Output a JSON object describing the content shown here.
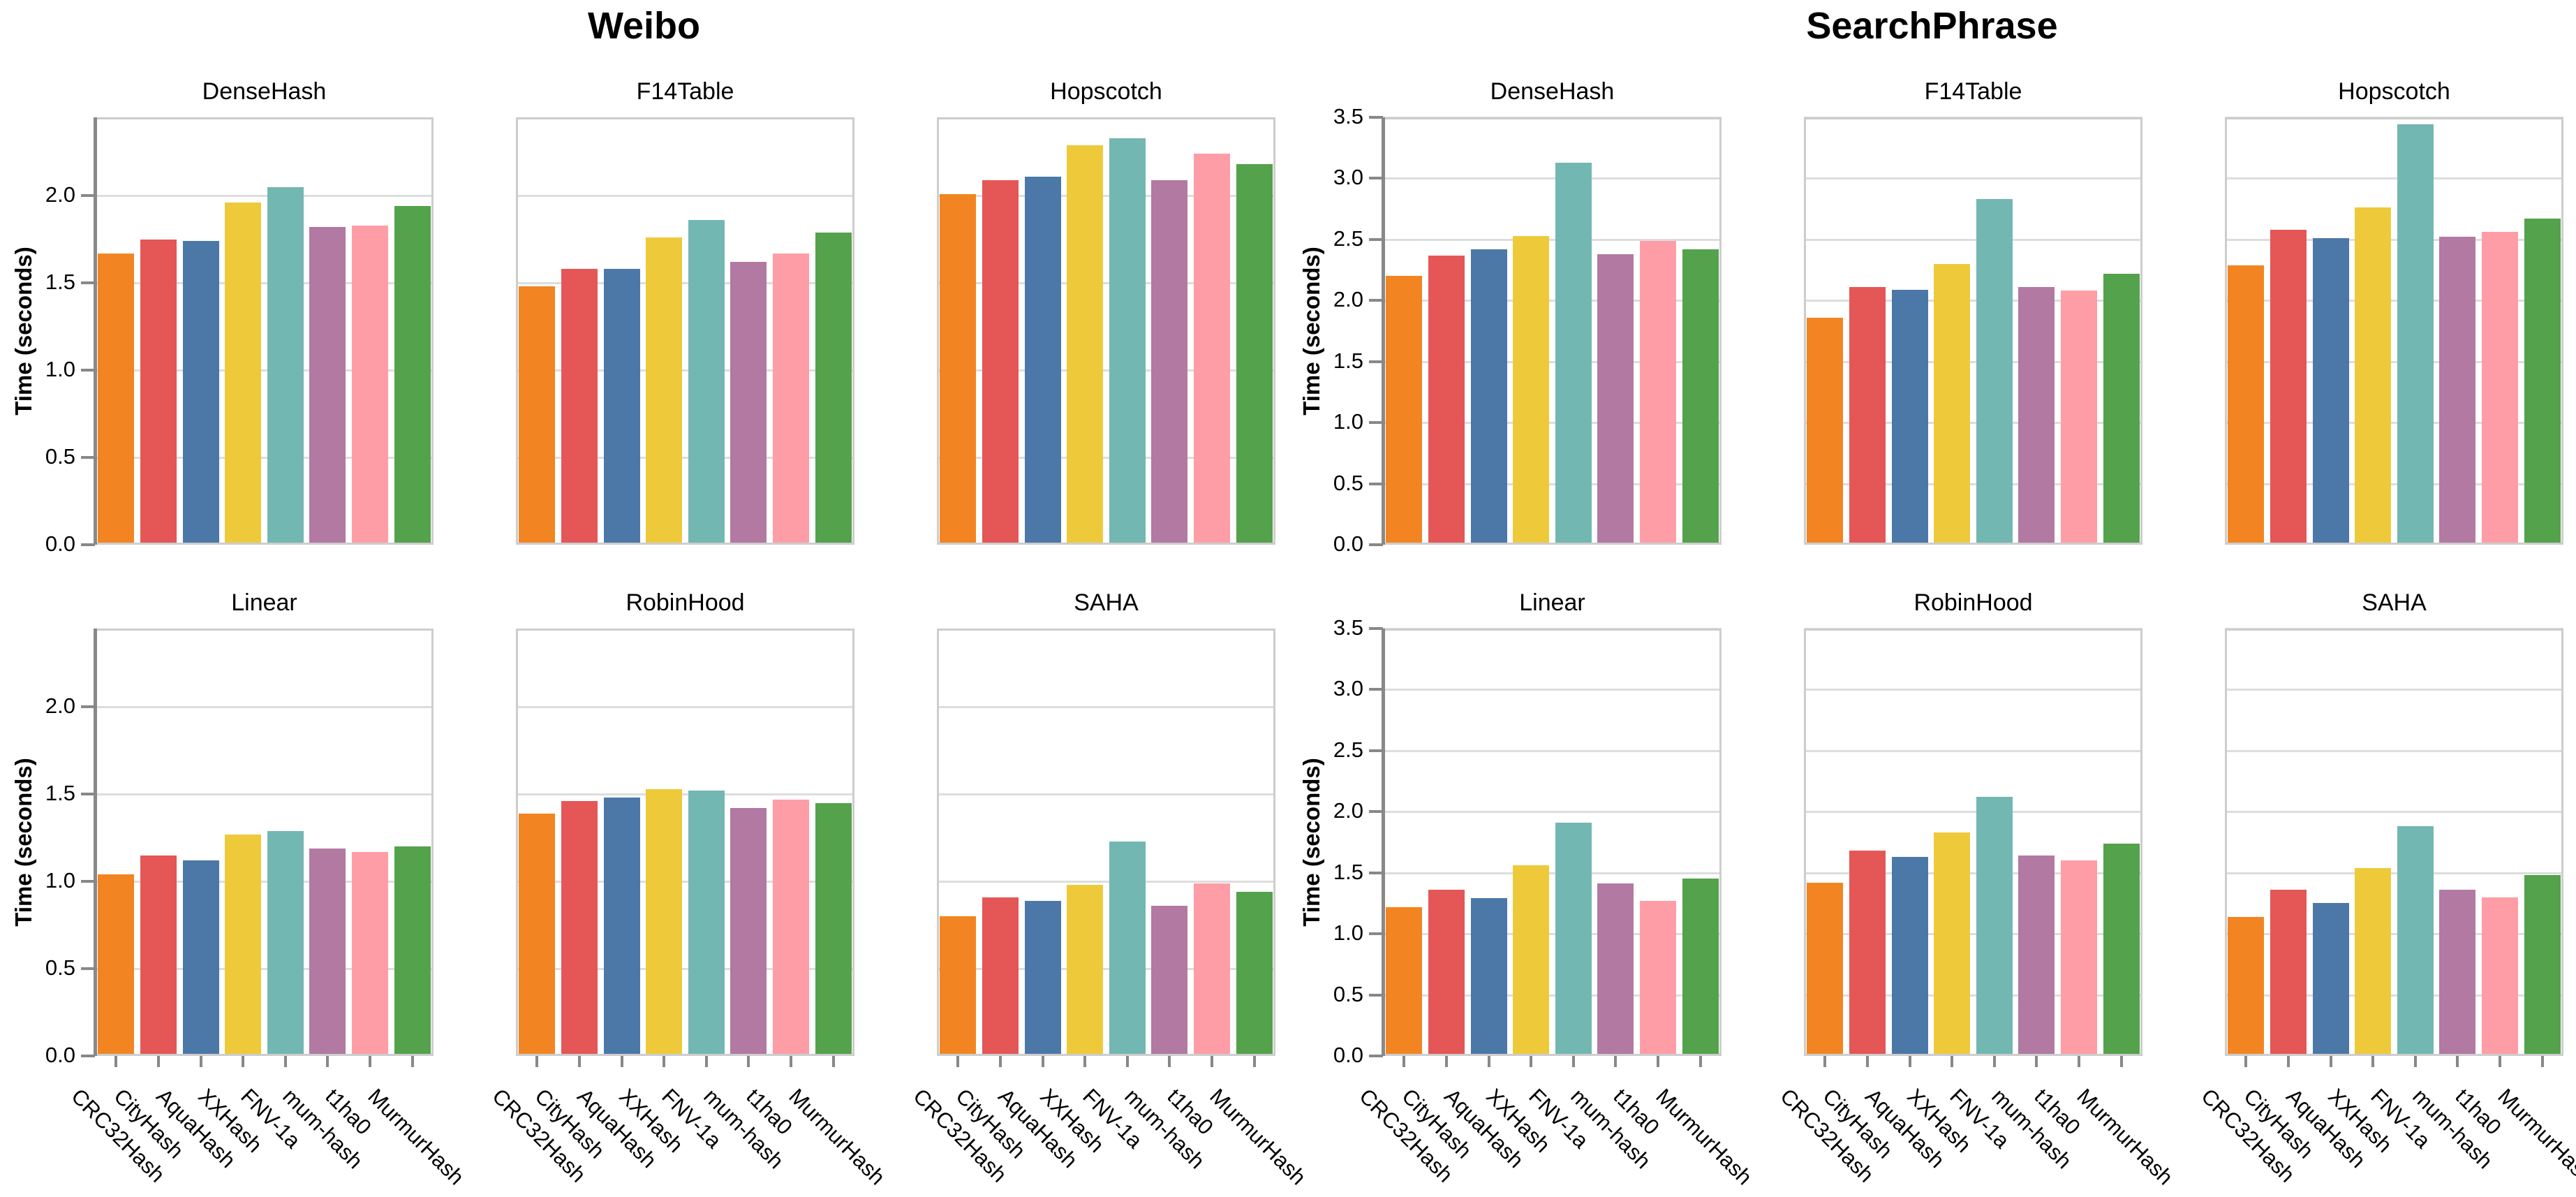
{
  "style": {
    "background": "#ffffff",
    "grid_color": "#dddddd",
    "frame_color": "#cdcdcd",
    "spine_color": "#888888",
    "text_color": "#000000"
  },
  "chart_data": [
    {
      "type": "bar",
      "title": "Weibo",
      "ylabel": "Time (seconds)",
      "ylim": [
        0,
        2.45
      ],
      "yticks": [
        0,
        0.5,
        1,
        1.5,
        2
      ],
      "grid": true,
      "legend": "none",
      "categories": [
        "CRC32Hash",
        "CityHash",
        "AquaHash",
        "XXHash",
        "FNV-1a",
        "mum-hash",
        "t1ha0",
        "MurmurHash"
      ],
      "bar_colors": [
        "#F28522",
        "#E45756",
        "#4C78A8",
        "#EECA3B",
        "#72B7B2",
        "#B279A2",
        "#FF9DA6",
        "#54A24B"
      ],
      "subplots": [
        {
          "title": "DenseHash",
          "values": [
            1.67,
            1.75,
            1.74,
            1.96,
            2.05,
            1.82,
            1.83,
            1.94
          ]
        },
        {
          "title": "F14Table",
          "values": [
            1.48,
            1.58,
            1.58,
            1.76,
            1.86,
            1.62,
            1.67,
            1.79
          ]
        },
        {
          "title": "Hopscotch",
          "values": [
            2.01,
            2.09,
            2.11,
            2.29,
            2.33,
            2.09,
            2.24,
            2.18
          ]
        },
        {
          "title": "Linear",
          "values": [
            1.04,
            1.15,
            1.12,
            1.27,
            1.29,
            1.19,
            1.17,
            1.2
          ]
        },
        {
          "title": "RobinHood",
          "values": [
            1.39,
            1.46,
            1.48,
            1.53,
            1.52,
            1.42,
            1.47,
            1.45
          ]
        },
        {
          "title": "SAHA",
          "values": [
            0.8,
            0.91,
            0.89,
            0.98,
            1.23,
            0.86,
            0.99,
            0.94
          ]
        }
      ]
    },
    {
      "type": "bar",
      "title": "SearchPhrase",
      "ylabel": "Time (seconds)",
      "ylim": [
        0,
        3.5
      ],
      "yticks": [
        0,
        0.5,
        1,
        1.5,
        2,
        2.5,
        3,
        3.5
      ],
      "grid": true,
      "legend": "none",
      "categories": [
        "CRC32Hash",
        "CityHash",
        "AquaHash",
        "XXHash",
        "FNV-1a",
        "mum-hash",
        "t1ha0",
        "MurmurHash"
      ],
      "bar_colors": [
        "#F28522",
        "#E45756",
        "#4C78A8",
        "#EECA3B",
        "#72B7B2",
        "#B279A2",
        "#FF9DA6",
        "#54A24B"
      ],
      "subplots": [
        {
          "title": "DenseHash",
          "values": [
            2.2,
            2.37,
            2.42,
            2.53,
            3.13,
            2.38,
            2.49,
            2.42
          ]
        },
        {
          "title": "F14Table",
          "values": [
            1.86,
            2.11,
            2.09,
            2.3,
            2.83,
            2.11,
            2.08,
            2.22
          ]
        },
        {
          "title": "Hopscotch",
          "values": [
            2.29,
            2.58,
            2.51,
            2.76,
            3.44,
            2.52,
            2.56,
            2.67
          ]
        },
        {
          "title": "Linear",
          "values": [
            1.22,
            1.36,
            1.29,
            1.56,
            1.91,
            1.41,
            1.27,
            1.45
          ]
        },
        {
          "title": "RobinHood",
          "values": [
            1.42,
            1.68,
            1.63,
            1.83,
            2.12,
            1.64,
            1.6,
            1.74
          ]
        },
        {
          "title": "SAHA",
          "values": [
            1.14,
            1.36,
            1.25,
            1.54,
            1.88,
            1.36,
            1.3,
            1.48
          ]
        }
      ]
    }
  ]
}
